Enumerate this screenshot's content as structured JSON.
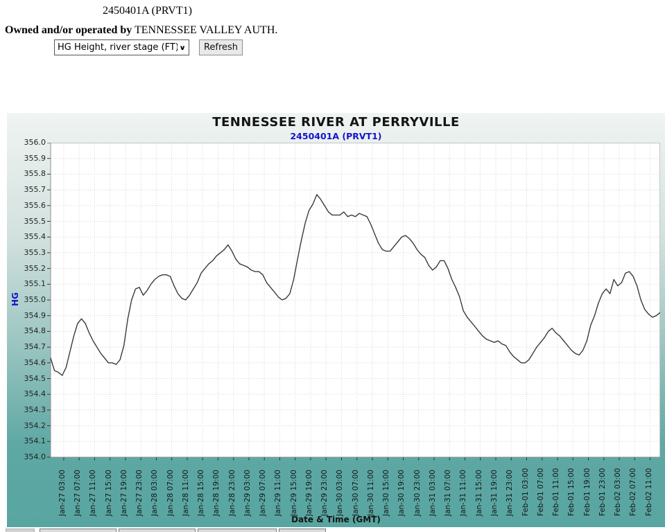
{
  "page": {
    "station_title": "2450401A (PRVT1)",
    "owner_prefix": "Owned and/or operated by",
    "owner_name": "TENNESSEE VALLEY AUTH.",
    "parameter_select": {
      "value": "HG Height, river stage (FT)"
    },
    "refresh_button": "Refresh"
  },
  "chart_data": {
    "type": "line",
    "title": "TENNESSEE RIVER  AT PERRYVILLE",
    "subtitle": "2450401A (PRVT1)",
    "xlabel": "Date & Time (GMT)",
    "ylabel": "HG",
    "ylim": [
      354.0,
      356.0
    ],
    "ytick_step": 0.1,
    "grid": true,
    "legend": "none",
    "line_color": "#3a3a3a",
    "x_start": "Jan-27 00:00",
    "x_interval_hours": 1,
    "x_tick_start_index": 3,
    "x_tick_every": 4,
    "x_tick_labels": [
      "Jan-27 03:00",
      "Jan-27 07:00",
      "Jan-27 11:00",
      "Jan-27 15:00",
      "Jan-27 19:00",
      "Jan-27 23:00",
      "Jan-28 03:00",
      "Jan-28 07:00",
      "Jan-28 11:00",
      "Jan-28 15:00",
      "Jan-28 19:00",
      "Jan-28 23:00",
      "Jan-29 03:00",
      "Jan-29 07:00",
      "Jan-29 11:00",
      "Jan-29 15:00",
      "Jan-29 19:00",
      "Jan-29 23:00",
      "Jan-30 03:00",
      "Jan-30 07:00",
      "Jan-30 11:00",
      "Jan-30 15:00",
      "Jan-30 19:00",
      "Jan-30 23:00",
      "Jan-31 03:00",
      "Jan-31 07:00",
      "Jan-31 11:00",
      "Jan-31 15:00",
      "Jan-31 19:00",
      "Jan-31 23:00",
      "Feb-01 03:00",
      "Feb-01 07:00",
      "Feb-01 11:00",
      "Feb-01 15:00",
      "Feb-01 19:00",
      "Feb-01 23:00",
      "Feb-02 03:00",
      "Feb-02 07:00",
      "Feb-02 11:00"
    ],
    "series": [
      {
        "name": "HG Height, river stage (FT)",
        "values": [
          354.63,
          354.55,
          354.54,
          354.52,
          354.57,
          354.67,
          354.77,
          354.85,
          354.88,
          354.85,
          354.79,
          354.74,
          354.7,
          354.66,
          354.63,
          354.6,
          354.6,
          354.59,
          354.62,
          354.71,
          354.88,
          355.0,
          355.07,
          355.08,
          355.03,
          355.06,
          355.1,
          355.13,
          355.15,
          355.16,
          355.16,
          355.15,
          355.09,
          355.04,
          355.01,
          355.0,
          355.03,
          355.07,
          355.11,
          355.17,
          355.2,
          355.23,
          355.25,
          355.28,
          355.3,
          355.32,
          355.35,
          355.31,
          355.26,
          355.23,
          355.22,
          355.21,
          355.19,
          355.18,
          355.18,
          355.16,
          355.11,
          355.08,
          355.05,
          355.02,
          355.0,
          355.01,
          355.04,
          355.13,
          355.26,
          355.38,
          355.49,
          355.57,
          355.61,
          355.67,
          355.64,
          355.6,
          355.56,
          355.54,
          355.54,
          355.54,
          355.56,
          355.53,
          355.54,
          355.53,
          355.55,
          355.54,
          355.53,
          355.48,
          355.42,
          355.36,
          355.32,
          355.31,
          355.31,
          355.34,
          355.37,
          355.4,
          355.41,
          355.39,
          355.36,
          355.32,
          355.29,
          355.27,
          355.22,
          355.19,
          355.21,
          355.25,
          355.25,
          355.2,
          355.13,
          355.08,
          355.02,
          354.93,
          354.89,
          354.86,
          354.83,
          354.8,
          354.77,
          354.75,
          354.74,
          354.73,
          354.74,
          354.72,
          354.71,
          354.67,
          354.64,
          354.62,
          354.6,
          354.6,
          354.62,
          354.66,
          354.7,
          354.73,
          354.76,
          354.8,
          354.82,
          354.79,
          354.77,
          354.74,
          354.71,
          354.68,
          354.66,
          354.65,
          354.68,
          354.74,
          354.84,
          354.9,
          354.98,
          355.04,
          355.07,
          355.04,
          355.13,
          355.09,
          355.11,
          355.17,
          355.18,
          355.15,
          355.09,
          355.0,
          354.94,
          354.91,
          354.89,
          354.9,
          354.92
        ]
      }
    ]
  },
  "colors": {
    "frame_teal": "#5fa8a4",
    "frame_top": "#f0f4f2",
    "subtitle_blue": "#1414cc",
    "grid": "#d8d4d4",
    "line": "#3a3a3a"
  }
}
